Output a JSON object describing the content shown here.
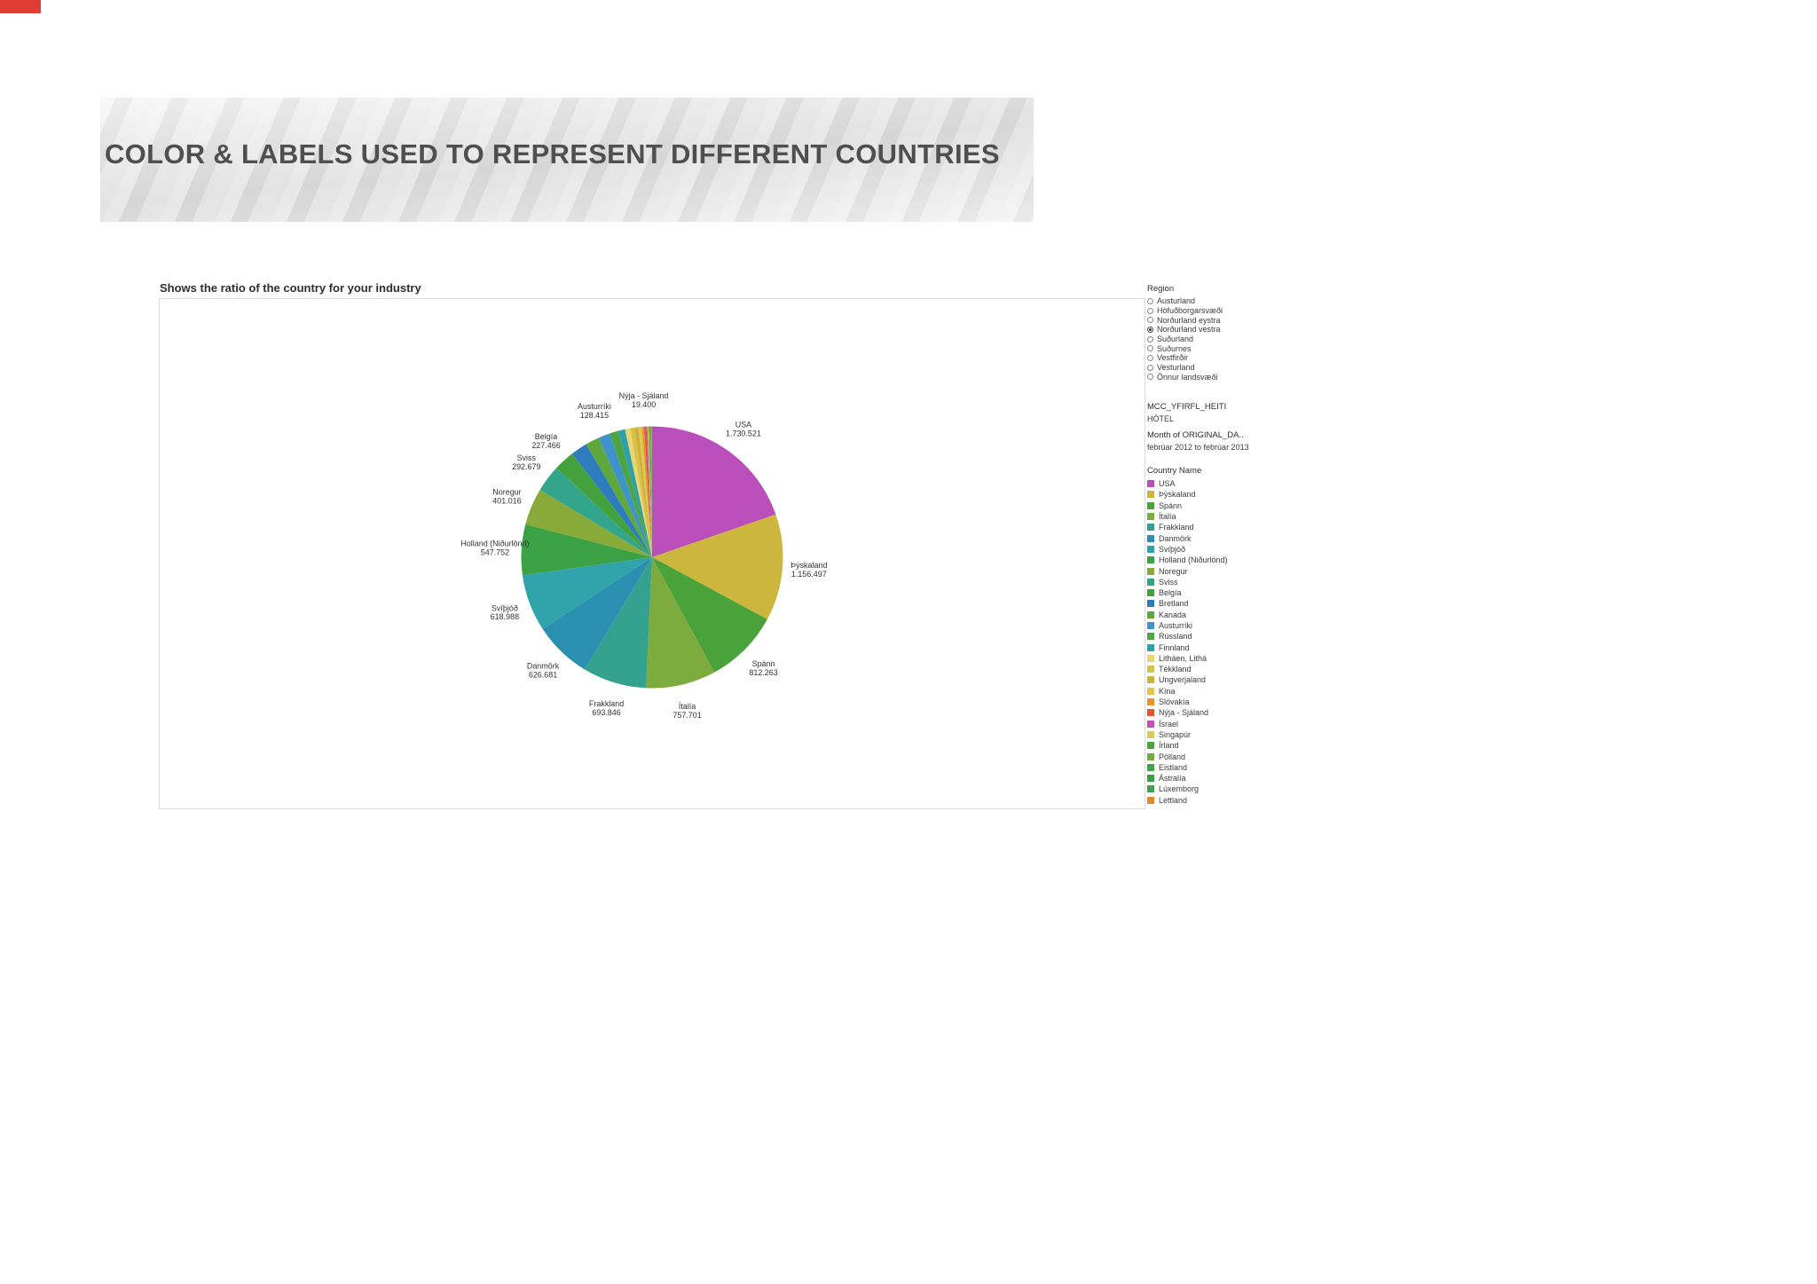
{
  "header": {
    "title": "COLOR & LABELS USED TO REPRESENT DIFFERENT COUNTRIES"
  },
  "chart": {
    "title": "Shows the ratio of the country for your industry"
  },
  "sidebar": {
    "region": {
      "title": "Region",
      "selected": "Norðurland vestra",
      "options": [
        "Austurland",
        "Höfuðborgarsvæði",
        "Norðurland eystra",
        "Norðurland vestra",
        "Suðurland",
        "Suðurnes",
        "Vestfirðir",
        "Vesturland",
        "Önnur landsvæði"
      ]
    },
    "mcc": {
      "title": "MCC_YFIRFL_HEITI",
      "value": "HÓTEL"
    },
    "month": {
      "title": "Month of ORIGINAL_DA..",
      "value": "febrúar 2012 to febrúar 2013"
    },
    "legend": {
      "title": "Country Name"
    }
  },
  "chart_data": {
    "type": "pie",
    "title": "Shows the ratio of the country for your industry",
    "legend_position": "right",
    "label_format": "dot-thousands",
    "slices": [
      {
        "name": "USA",
        "value": 1730521,
        "display": "1.730.521",
        "color": "#ba4fbb"
      },
      {
        "name": "Þýskaland",
        "value": 1156497,
        "display": "1.156.497",
        "color": "#cdb63d"
      },
      {
        "name": "Spánn",
        "value": 812263,
        "display": "812.263",
        "color": "#4aa23a"
      },
      {
        "name": "Ítalía",
        "value": 757701,
        "display": "757.701",
        "color": "#7eab3e"
      },
      {
        "name": "Frakkland",
        "value": 693846,
        "display": "693.846",
        "color": "#35a290"
      },
      {
        "name": "Danmörk",
        "value": 626681,
        "display": "626.681",
        "color": "#2a8fb0"
      },
      {
        "name": "Svíþjóð",
        "value": 618988,
        "display": "618.988",
        "color": "#31a3ab"
      },
      {
        "name": "Holland (Niðurlönd)",
        "value": 547752,
        "display": "547.752",
        "color": "#3aa145"
      },
      {
        "name": "Noregur",
        "value": 401016,
        "display": "401.016",
        "color": "#87aa39"
      },
      {
        "name": "Sviss",
        "value": 292679,
        "display": "292.679",
        "color": "#33a58b"
      },
      {
        "name": "Belgía",
        "value": 227466,
        "display": "227.466",
        "color": "#44a23e"
      },
      {
        "name": "Bretland",
        "value": 180000,
        "display": null,
        "estimated": true,
        "color": "#2e7cbd"
      },
      {
        "name": "Kanada",
        "value": 150000,
        "display": null,
        "estimated": true,
        "color": "#5fa83d"
      },
      {
        "name": "Austurríki",
        "value": 128415,
        "display": "128.415",
        "color": "#3f93cb"
      },
      {
        "name": "Rússland",
        "value": 95000,
        "display": null,
        "estimated": true,
        "color": "#4ea441"
      },
      {
        "name": "Finnland",
        "value": 75000,
        "display": null,
        "estimated": true,
        "color": "#2fa0a8"
      },
      {
        "name": "Litháen, Lithá",
        "value": 55000,
        "display": null,
        "estimated": true,
        "color": "#ead575"
      },
      {
        "name": "Tékkland",
        "value": 48000,
        "display": null,
        "estimated": true,
        "color": "#d9c14a"
      },
      {
        "name": "Ungverjaland",
        "value": 42000,
        "display": null,
        "estimated": true,
        "color": "#cab23b"
      },
      {
        "name": "Kína",
        "value": 36000,
        "display": null,
        "estimated": true,
        "color": "#e0c84f"
      },
      {
        "name": "Slóvakía",
        "value": 26000,
        "display": null,
        "estimated": true,
        "color": "#e5932f"
      },
      {
        "name": "Nýja - Sjáland",
        "value": 19400,
        "display": "19.400",
        "color": "#e2542c"
      },
      {
        "name": "Ísrael",
        "value": 15000,
        "display": null,
        "estimated": true,
        "color": "#c44fb5"
      },
      {
        "name": "Singapúr",
        "value": 12000,
        "display": null,
        "estimated": true,
        "color": "#d9ca62"
      },
      {
        "name": "Írland",
        "value": 10000,
        "display": null,
        "estimated": true,
        "color": "#48a43c"
      },
      {
        "name": "Pólland",
        "value": 8000,
        "display": null,
        "estimated": true,
        "color": "#74aa3c"
      },
      {
        "name": "Eistland",
        "value": 6500,
        "display": null,
        "estimated": true,
        "color": "#3ea34c"
      },
      {
        "name": "Ástralía",
        "value": 5500,
        "display": null,
        "estimated": true,
        "color": "#35a043"
      },
      {
        "name": "Lúxemborg",
        "value": 4500,
        "display": null,
        "estimated": true,
        "color": "#43a051"
      },
      {
        "name": "Lettland",
        "value": 3500,
        "display": null,
        "estimated": true,
        "color": "#e08a2e"
      }
    ]
  }
}
